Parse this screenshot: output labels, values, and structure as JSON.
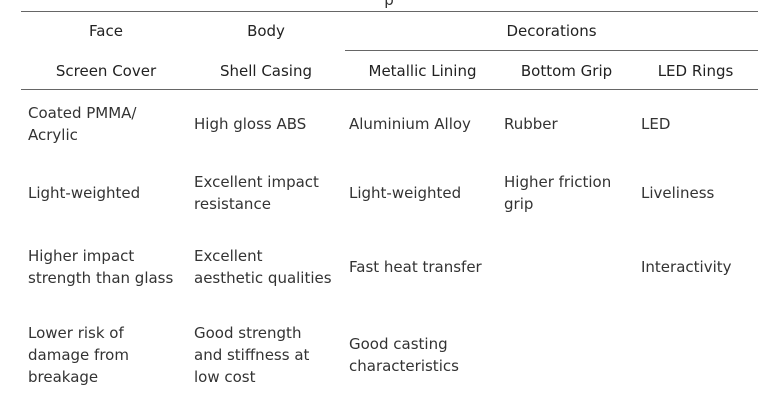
{
  "table": {
    "caption_fragment": "p",
    "group_headers": {
      "face": "Face",
      "body": "Body",
      "decorations": "Decorations"
    },
    "column_headers": {
      "screen_cover": "Screen Cover",
      "shell_casing": "Shell Casing",
      "metallic_lining": "Metallic Lining",
      "bottom_grip": "Bottom Grip",
      "led_rings": "LED Rings"
    },
    "rows": [
      {
        "screen_cover": [
          "Coated PMMA/",
          "Acrylic"
        ],
        "shell_casing": [
          "High gloss ABS"
        ],
        "metallic_lining": [
          "Aluminium Alloy"
        ],
        "bottom_grip": [
          "Rubber"
        ],
        "led_rings": [
          "LED"
        ]
      },
      {
        "screen_cover": [
          "Light-weighted"
        ],
        "shell_casing": [
          "Excellent impact",
          "resistance"
        ],
        "metallic_lining": [
          "Light-weighted"
        ],
        "bottom_grip": [
          "Higher friction",
          "grip"
        ],
        "led_rings": [
          "Liveliness"
        ]
      },
      {
        "screen_cover": [
          "Higher impact",
          "strength than glass"
        ],
        "shell_casing": [
          "Excellent",
          "aesthetic qualities"
        ],
        "metallic_lining": [
          "Fast heat transfer"
        ],
        "bottom_grip": [],
        "led_rings": [
          "Interactivity"
        ]
      },
      {
        "screen_cover": [
          "Lower risk of",
          "damage from",
          "breakage"
        ],
        "shell_casing": [
          "Good strength",
          "and stiffness at",
          "low cost"
        ],
        "metallic_lining": [
          "Good casting",
          "characteristics"
        ],
        "bottom_grip": [],
        "led_rings": []
      }
    ]
  }
}
